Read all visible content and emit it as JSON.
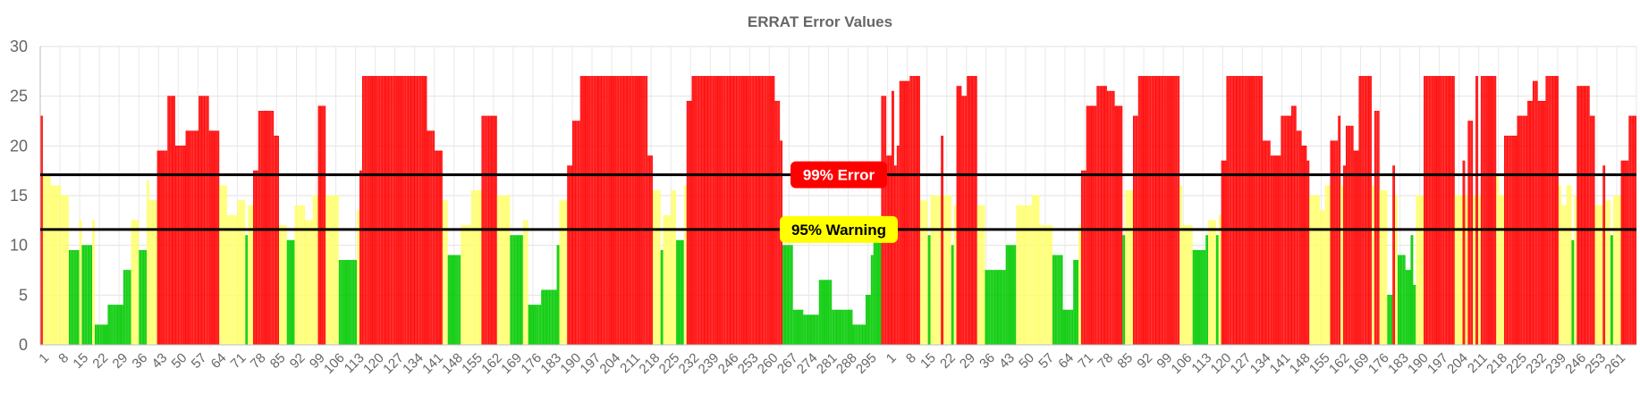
{
  "chart_data": {
    "type": "bar",
    "title": "ERRAT Error Values",
    "ylim": [
      0,
      30
    ],
    "y_ticks": [
      0,
      5,
      10,
      15,
      20,
      25,
      30
    ],
    "x_tick_labels": [
      "1",
      "8",
      "15",
      "22",
      "29",
      "36",
      "43",
      "50",
      "57",
      "64",
      "71",
      "78",
      "85",
      "92",
      "99",
      "106",
      "113",
      "120",
      "127",
      "134",
      "141",
      "148",
      "155",
      "162",
      "169",
      "176",
      "183",
      "190",
      "197",
      "204",
      "211",
      "218",
      "225",
      "232",
      "239",
      "246",
      "253",
      "260",
      "267",
      "274",
      "281",
      "288",
      "295",
      "1",
      "8",
      "15",
      "22",
      "29",
      "36",
      "43",
      "50",
      "57",
      "64",
      "71",
      "78",
      "85",
      "92",
      "99",
      "106",
      "113",
      "120",
      "127",
      "134",
      "141",
      "148",
      "155",
      "162",
      "169",
      "176",
      "183",
      "190",
      "197",
      "204",
      "211",
      "218",
      "225",
      "232",
      "239",
      "246",
      "253",
      "261"
    ],
    "segments": [
      [
        1,
        23.0
      ],
      [
        3,
        17.0
      ],
      [
        4,
        16.0
      ],
      [
        3,
        15.0
      ],
      [
        4,
        9.5
      ],
      [
        1,
        12.5
      ],
      [
        4,
        10.0
      ],
      [
        1,
        12.5
      ],
      [
        5,
        2.0
      ],
      [
        6,
        4.0
      ],
      [
        3,
        7.5
      ],
      [
        3,
        12.5
      ],
      [
        3,
        9.5
      ],
      [
        1,
        16.5
      ],
      [
        3,
        14.5
      ],
      [
        4,
        19.5
      ],
      [
        3,
        25.0
      ],
      [
        4,
        20.0
      ],
      [
        5,
        21.5
      ],
      [
        4,
        25.0
      ],
      [
        4,
        21.5
      ],
      [
        3,
        16.0
      ],
      [
        4,
        13.0
      ],
      [
        3,
        14.5
      ],
      [
        1,
        11.0
      ],
      [
        2,
        14.0
      ],
      [
        2,
        17.5
      ],
      [
        6,
        23.5
      ],
      [
        2,
        21.0
      ],
      [
        3,
        12.0
      ],
      [
        3,
        10.5
      ],
      [
        4,
        14.0
      ],
      [
        3,
        12.5
      ],
      [
        2,
        15.0
      ],
      [
        3,
        24.0
      ],
      [
        5,
        15.0
      ],
      [
        7,
        8.5
      ],
      [
        1,
        13.5
      ],
      [
        1,
        17.5
      ],
      [
        25,
        27.0
      ],
      [
        3,
        21.5
      ],
      [
        3,
        19.5
      ],
      [
        2,
        14.5
      ],
      [
        5,
        9.0
      ],
      [
        4,
        12.0
      ],
      [
        4,
        15.5
      ],
      [
        6,
        23.0
      ],
      [
        5,
        15.0
      ],
      [
        5,
        11.0
      ],
      [
        2,
        12.5
      ],
      [
        5,
        4.0
      ],
      [
        6,
        5.5
      ],
      [
        1,
        10.0
      ],
      [
        3,
        14.5
      ],
      [
        2,
        18.0
      ],
      [
        3,
        22.5
      ],
      [
        26,
        27.0
      ],
      [
        2,
        19.0
      ],
      [
        3,
        15.5
      ],
      [
        1,
        9.5
      ],
      [
        3,
        13.0
      ],
      [
        2,
        15.5
      ],
      [
        3,
        10.5
      ],
      [
        1,
        16.0
      ],
      [
        2,
        24.5
      ],
      [
        32,
        27.0
      ],
      [
        2,
        24.5
      ],
      [
        1,
        20.5
      ],
      [
        4,
        10.0
      ],
      [
        4,
        3.5
      ],
      [
        6,
        3.0
      ],
      [
        5,
        6.5
      ],
      [
        8,
        3.5
      ],
      [
        5,
        2.0
      ],
      [
        2,
        5.0
      ],
      [
        1,
        9.0
      ],
      [
        3,
        11.0
      ],
      [
        2,
        25.0
      ],
      [
        2,
        19.0
      ],
      [
        1,
        25.5
      ],
      [
        1,
        18.0
      ],
      [
        1,
        20.0
      ],
      [
        4,
        26.5
      ],
      [
        4,
        27.0
      ],
      [
        3,
        14.5
      ],
      [
        1,
        11.0
      ],
      [
        4,
        15.0
      ],
      [
        1,
        21.0
      ],
      [
        3,
        15.0
      ],
      [
        1,
        10.0
      ],
      [
        1,
        14.0
      ],
      [
        2,
        26.0
      ],
      [
        2,
        25.0
      ],
      [
        4,
        27.0
      ],
      [
        3,
        14.0
      ],
      [
        8,
        7.5
      ],
      [
        4,
        10.0
      ],
      [
        6,
        14.0
      ],
      [
        3,
        15.0
      ],
      [
        5,
        12.0
      ],
      [
        4,
        9.0
      ],
      [
        4,
        3.5
      ],
      [
        2,
        8.5
      ],
      [
        1,
        12.0
      ],
      [
        2,
        17.5
      ],
      [
        4,
        24.0
      ],
      [
        4,
        26.0
      ],
      [
        3,
        25.5
      ],
      [
        3,
        24.0
      ],
      [
        1,
        11.0
      ],
      [
        3,
        15.5
      ],
      [
        2,
        23.0
      ],
      [
        16,
        27.0
      ],
      [
        1,
        16.0
      ],
      [
        4,
        12.0
      ],
      [
        5,
        9.5
      ],
      [
        1,
        11.0
      ],
      [
        3,
        12.5
      ],
      [
        1,
        11.0
      ],
      [
        1,
        13.0
      ],
      [
        2,
        18.5
      ],
      [
        14,
        27.0
      ],
      [
        3,
        20.5
      ],
      [
        4,
        19.0
      ],
      [
        4,
        23.0
      ],
      [
        2,
        24.0
      ],
      [
        2,
        21.5
      ],
      [
        2,
        20.0
      ],
      [
        1,
        18.5
      ],
      [
        4,
        15.0
      ],
      [
        2,
        13.5
      ],
      [
        2,
        16.0
      ],
      [
        3,
        20.5
      ],
      [
        1,
        23.0
      ],
      [
        1,
        16.0
      ],
      [
        1,
        18.0
      ],
      [
        3,
        22.0
      ],
      [
        2,
        19.5
      ],
      [
        5,
        27.0
      ],
      [
        1,
        16.0
      ],
      [
        2,
        23.5
      ],
      [
        3,
        15.5
      ],
      [
        2,
        5.0
      ],
      [
        1,
        18.0
      ],
      [
        1,
        15.0
      ],
      [
        3,
        9.0
      ],
      [
        2,
        7.5
      ],
      [
        1,
        11.0
      ],
      [
        1,
        6.0
      ],
      [
        3,
        15.0
      ],
      [
        12,
        27.0
      ],
      [
        3,
        15.0
      ],
      [
        1,
        18.5
      ],
      [
        1,
        15.0
      ],
      [
        2,
        22.5
      ],
      [
        1,
        15.0
      ],
      [
        1,
        27.0
      ],
      [
        1,
        15.0
      ],
      [
        6,
        27.0
      ],
      [
        1,
        17.0
      ],
      [
        2,
        15.0
      ],
      [
        5,
        21.0
      ],
      [
        4,
        23.0
      ],
      [
        2,
        24.5
      ],
      [
        2,
        26.5
      ],
      [
        3,
        24.5
      ],
      [
        5,
        27.0
      ],
      [
        1,
        16.0
      ],
      [
        2,
        14.0
      ],
      [
        2,
        16.0
      ],
      [
        1,
        10.5
      ],
      [
        1,
        15.0
      ],
      [
        5,
        26.0
      ],
      [
        2,
        23.0
      ],
      [
        3,
        14.0
      ],
      [
        1,
        18.0
      ],
      [
        2,
        14.5
      ],
      [
        1,
        11.0
      ],
      [
        3,
        15.0
      ],
      [
        3,
        18.5
      ],
      [
        3,
        23.0
      ]
    ],
    "series": [
      {
        "name": "",
        "color": "#ff0000",
        "fill": "rgba(255,0,0,0.85)",
        "rule": ">= 17.1"
      },
      {
        "name": "",
        "color": "#ffff66",
        "fill": "rgba(255,255,102,0.75)",
        "rule": ">= 11.6 and < 17.1"
      },
      {
        "name": "",
        "color": "#00cc00",
        "fill": "rgba(0,200,0,0.85)",
        "rule": "< 11.6"
      }
    ],
    "thresholds": [
      {
        "label": "99% Error",
        "value": 17.1,
        "line_color": "#000000",
        "label_bg": "#ff0000",
        "label_color": "#ffffff"
      },
      {
        "label": "95% Warning",
        "value": 11.6,
        "line_color": "#000000",
        "label_bg": "#ffff00",
        "label_color": "#000000"
      }
    ],
    "grid": true
  }
}
